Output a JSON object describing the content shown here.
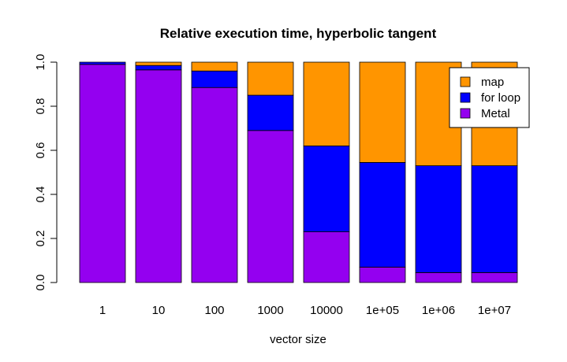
{
  "chart_data": {
    "type": "bar",
    "stacked": true,
    "title": "Relative execution time, hyperbolic tangent",
    "xlabel": "vector size",
    "ylabel": "",
    "ylim": [
      0,
      1
    ],
    "yticks": [
      "0.0",
      "0.2",
      "0.4",
      "0.6",
      "0.8",
      "1.0"
    ],
    "categories": [
      "1",
      "10",
      "100",
      "1000",
      "10000",
      "1e+05",
      "1e+06",
      "1e+07"
    ],
    "series": [
      {
        "name": "Metal",
        "color": "#9400f0",
        "values": [
          0.99,
          0.965,
          0.885,
          0.69,
          0.23,
          0.07,
          0.045,
          0.045
        ]
      },
      {
        "name": "for loop",
        "color": "#0000ff",
        "values": [
          0.01,
          0.02,
          0.075,
          0.16,
          0.39,
          0.475,
          0.485,
          0.485
        ]
      },
      {
        "name": "map",
        "color": "#ff9500",
        "values": [
          0.0,
          0.015,
          0.04,
          0.15,
          0.38,
          0.455,
          0.47,
          0.47
        ]
      }
    ],
    "legend": {
      "position": "top-right",
      "entries": [
        "map",
        "for loop",
        "Metal"
      ]
    },
    "grid": false
  }
}
